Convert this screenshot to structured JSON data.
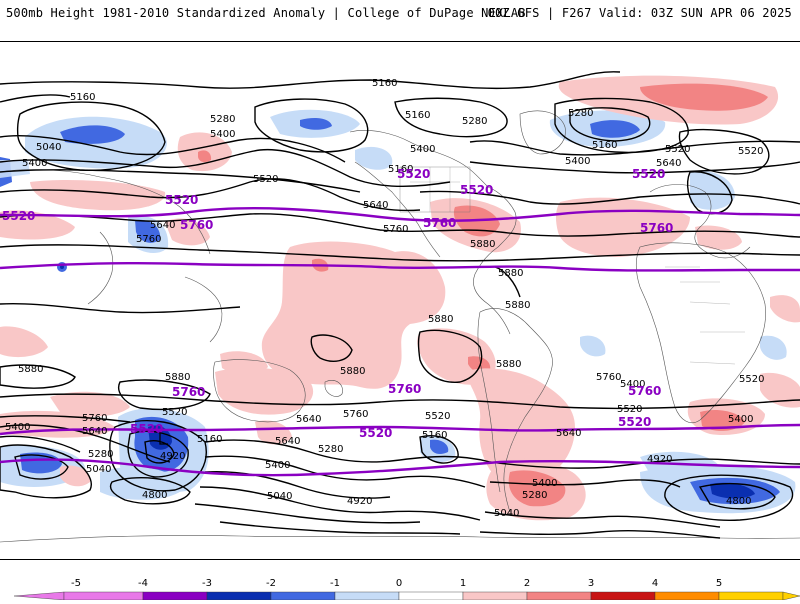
{
  "header": {
    "title_left": "500mb Height 1981-2010 Standardized Anomaly | College of DuPage NEXLAB",
    "title_right": "00Z GFS | F267 Valid: 03Z SUN APR 06 2025"
  },
  "map": {
    "contour_labels_black": [
      "5160",
      "5160",
      "5040",
      "5280",
      "5400",
      "5160",
      "5400",
      "5280",
      "5280",
      "5160",
      "5400",
      "5400",
      "5160",
      "5520",
      "5520",
      "5640",
      "5520",
      "5640",
      "5760",
      "5760",
      "5640",
      "5880",
      "5880",
      "5880",
      "5880",
      "5880",
      "5880",
      "5880",
      "5880",
      "5760",
      "5640",
      "5760",
      "5400",
      "5640",
      "5280",
      "5040",
      "5520",
      "5160",
      "4920",
      "4800",
      "5400",
      "5280",
      "5640",
      "5040",
      "4920",
      "5160",
      "5520",
      "5640",
      "5400",
      "5280",
      "5040",
      "5760",
      "5520",
      "5400",
      "4920",
      "4800",
      "5520",
      "5400"
    ],
    "contour_labels_purple": [
      "5520",
      "5760",
      "5520",
      "5760",
      "5520",
      "5760",
      "5760",
      "5760",
      "5520",
      "5760",
      "5520",
      "5520",
      "5520",
      "5520"
    ],
    "colors": {
      "neg5": "#e879e8",
      "neg4": "#8a00c2",
      "neg3": "#0a2fb0",
      "neg2": "#4169e1",
      "neg1": "#c6dcf7",
      "pos1": "#f9c7c7",
      "pos2": "#f28484",
      "pos3": "#c81414",
      "pos4": "#ff8c00",
      "pos5": "#ffd000",
      "contour_black": "#000000",
      "contour_purple": "#8a00c2"
    }
  },
  "colorbar": {
    "ticks": [
      "-5",
      "-4",
      "-3",
      "-2",
      "-1",
      "0",
      "1",
      "2",
      "3",
      "4",
      "5"
    ]
  }
}
